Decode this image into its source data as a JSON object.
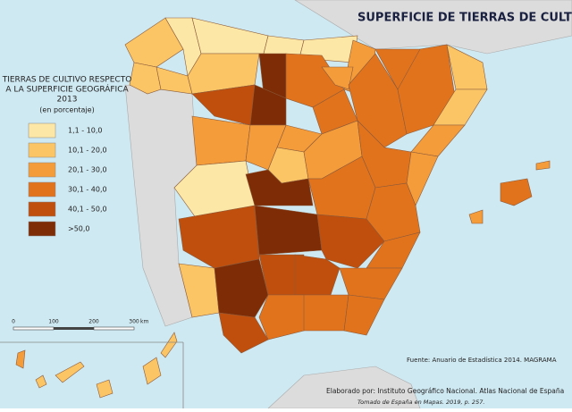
{
  "title": "SUPERFICIE DE TIERRAS DE CULTIVO",
  "legend": {
    "title": [
      "TIERRAS DE CULTIVO RESPECTO",
      "A LA SUPERFICIE GEOGRÁFICA",
      "2013"
    ],
    "subtitle": "(en porcentaje)",
    "items": [
      {
        "label": "1,1 - 10,0",
        "color": "#fde7a6"
      },
      {
        "label": "10,1 - 20,0",
        "color": "#fbc566"
      },
      {
        "label": "20,1 - 30,0",
        "color": "#f59c3a"
      },
      {
        "label": "30,1 - 40,0",
        "color": "#e2731d"
      },
      {
        "label": "40,1 - 50,0",
        "color": "#c04f0e"
      },
      {
        "label": ">50,0",
        "color": "#7d2c06"
      }
    ]
  },
  "scale": {
    "labels": [
      "0",
      "100",
      "200",
      "300"
    ],
    "unit": "km"
  },
  "source": "Fuente: Anuario de Estadística 2014. MAGRAMA",
  "credit": "Elaborado por: Instituto Geográfico Nacional. Atlas Nacional de España",
  "reference": "Tomado de España en Mapas. 2019, p. 257."
}
